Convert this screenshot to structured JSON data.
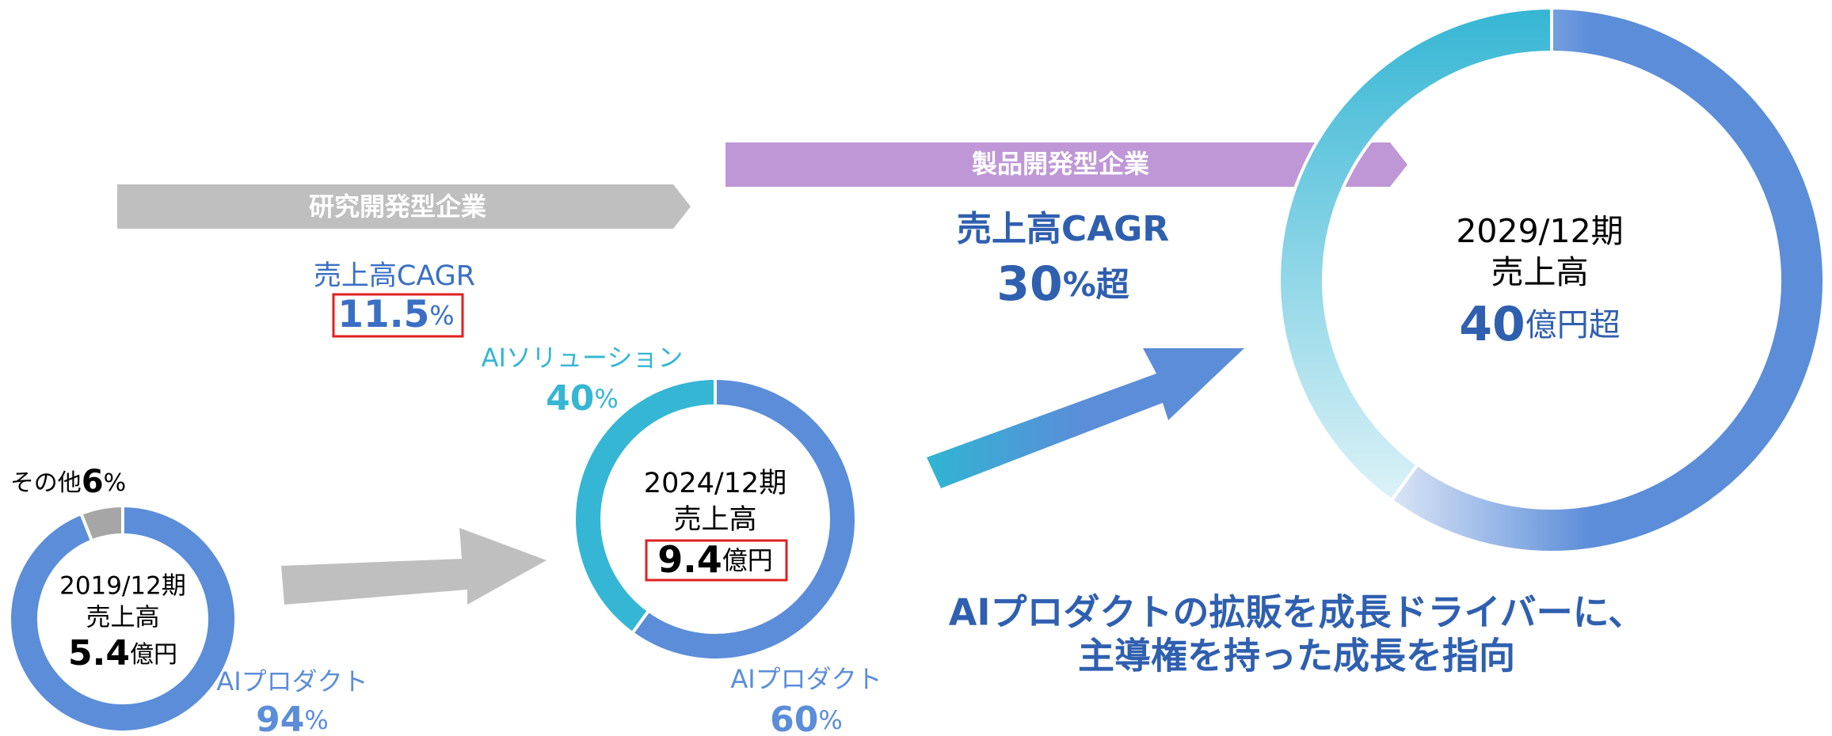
{
  "phases": [
    {
      "name": "研究開発型企業",
      "cagr": {
        "label": "売上高CAGR",
        "value": 11.5,
        "value_label": "11.5%"
      }
    },
    {
      "name": "製品開発型企業",
      "cagr": {
        "label": "売上高CAGR",
        "value": 30,
        "value_label": "30%超"
      }
    }
  ],
  "message": [
    "AIプロダクトの拡販を成長ドライバーに、",
    "主導権を持った成長を指向"
  ],
  "chart_data": [
    {
      "type": "pie",
      "period": "2019/12期",
      "metric": "売上高",
      "total": 5.4,
      "total_label": "5.4億円",
      "categories": [
        "AIプロダクト",
        "その他"
      ],
      "values": [
        94,
        6
      ],
      "value_labels": [
        "94%",
        "6%"
      ],
      "colors": [
        "#5b8dd9",
        "#a6a6a6"
      ]
    },
    {
      "type": "pie",
      "period": "2024/12期",
      "metric": "売上高",
      "total": 9.4,
      "total_label": "9.4億円",
      "categories": [
        "AIプロダクト",
        "AIソリューション"
      ],
      "values": [
        60,
        40
      ],
      "value_labels": [
        "60%",
        "40%"
      ],
      "colors": [
        "#5b8dd9",
        "#35b6d4"
      ]
    },
    {
      "type": "pie",
      "period": "2029/12期",
      "metric": "売上高",
      "total": 40,
      "total_label": "40億円超"
    }
  ]
}
